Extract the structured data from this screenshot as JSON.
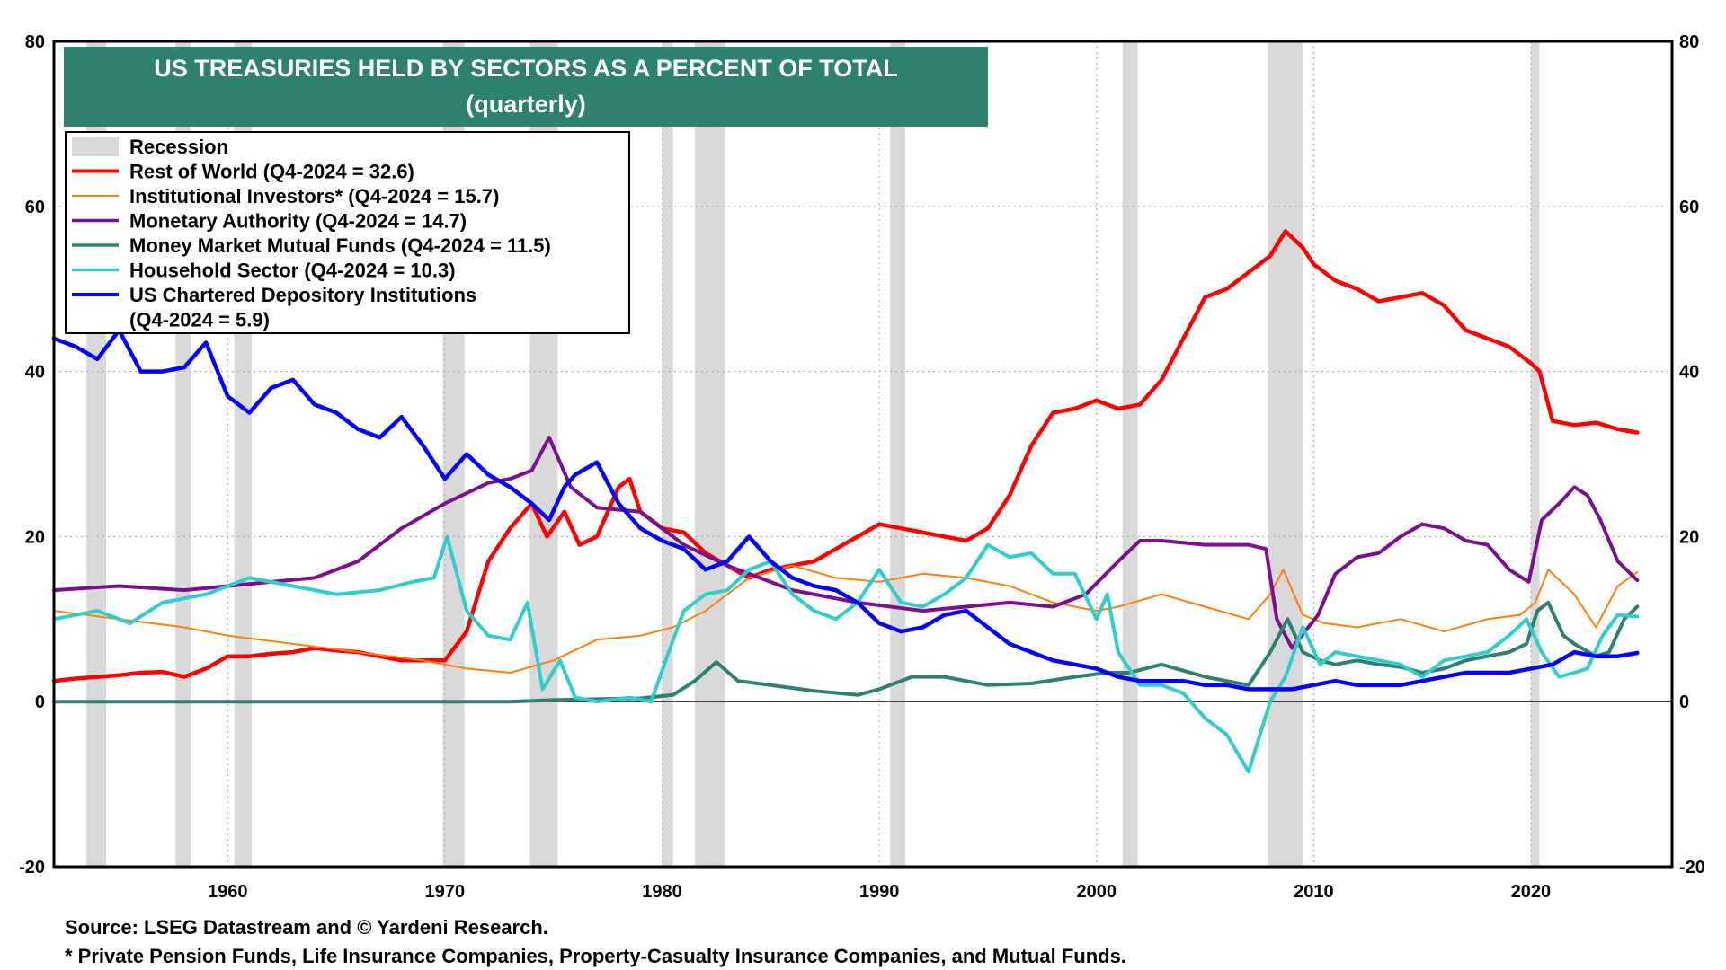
{
  "chart_data": {
    "type": "line",
    "title": "US TREASURIES HELD BY SECTORS AS A PERCENT OF TOTAL",
    "subtitle": "(quarterly)",
    "xlim": [
      1952,
      2026.5
    ],
    "ylim": [
      -20,
      80
    ],
    "x_ticks": [
      1960,
      1970,
      1980,
      1990,
      2000,
      2010,
      2020
    ],
    "y_ticks": [
      -20,
      0,
      20,
      40,
      60,
      80
    ],
    "grid": true,
    "legend_position": "top-left",
    "recession_label": "Recession",
    "recession_color": "#d9d9d9",
    "recessions": [
      [
        1953.5,
        1954.4
      ],
      [
        1957.6,
        1958.3
      ],
      [
        1960.3,
        1961.1
      ],
      [
        1969.9,
        1970.9
      ],
      [
        1973.9,
        1975.2
      ],
      [
        1980.0,
        1980.5
      ],
      [
        1981.5,
        1982.9
      ],
      [
        1990.5,
        1991.2
      ],
      [
        2001.2,
        2001.9
      ],
      [
        2007.9,
        2009.5
      ],
      [
        2020.0,
        2020.4
      ]
    ],
    "series": [
      {
        "name": "Rest of World (Q4-2024 = 32.6)",
        "color": "#ff0000",
        "width": 4.5,
        "x": [
          1952,
          1953,
          1954,
          1955,
          1956,
          1957,
          1958,
          1959,
          1960,
          1961,
          1962,
          1963,
          1964,
          1965,
          1966,
          1967,
          1968,
          1969,
          1970,
          1971,
          1972,
          1973,
          1974,
          1974.7,
          1975.5,
          1976.2,
          1977,
          1978,
          1978.5,
          1979,
          1980,
          1981,
          1982,
          1983,
          1984,
          1985,
          1986,
          1987,
          1988,
          1989,
          1990,
          1991,
          1992,
          1993,
          1994,
          1995,
          1996,
          1997,
          1998,
          1999,
          2000,
          2001,
          2002,
          2003,
          2004,
          2005,
          2006,
          2007,
          2008,
          2008.7,
          2009.5,
          2010,
          2011,
          2012,
          2013,
          2014,
          2015,
          2016,
          2017,
          2018,
          2019,
          2020,
          2020.4,
          2021,
          2022,
          2023,
          2024,
          2024.9
        ],
        "y": [
          2.5,
          2.8,
          3.0,
          3.2,
          3.5,
          3.6,
          3.0,
          4.0,
          5.5,
          5.5,
          5.8,
          6.0,
          6.5,
          6.2,
          6.0,
          5.5,
          5.0,
          5.0,
          5.0,
          8.5,
          17.0,
          21.0,
          24.0,
          20.0,
          23.0,
          19.0,
          20.0,
          26.0,
          27.0,
          23.0,
          21.0,
          20.5,
          18.0,
          16.5,
          15.0,
          16.0,
          16.5,
          17.0,
          18.5,
          20.0,
          21.5,
          21.0,
          20.5,
          20.0,
          19.5,
          21.0,
          25.0,
          31.0,
          35.0,
          35.5,
          36.5,
          35.5,
          36.0,
          39.0,
          44.0,
          49.0,
          50.0,
          52.0,
          54.0,
          57.0,
          55.0,
          53.0,
          51.0,
          50.0,
          48.5,
          49.0,
          49.5,
          48.0,
          45.0,
          44.0,
          43.0,
          41.0,
          40.0,
          34.0,
          33.5,
          33.8,
          33.0,
          32.6
        ]
      },
      {
        "name": "Institutional Investors* (Q4-2024 = 15.7)",
        "color": "#ff7f0e",
        "width": 2,
        "x": [
          1952,
          1955,
          1958,
          1960,
          1963,
          1966,
          1969,
          1971,
          1973,
          1975,
          1977,
          1979,
          1980.5,
          1982,
          1984,
          1986,
          1988,
          1990,
          1992,
          1994,
          1996,
          1998,
          2000,
          2001,
          2003,
          2005,
          2007,
          2008,
          2008.6,
          2009.5,
          2010.5,
          2012,
          2014,
          2016,
          2018,
          2019.5,
          2020.2,
          2020.8,
          2022,
          2023,
          2024,
          2024.9
        ],
        "y": [
          11.0,
          10.0,
          9.0,
          8.0,
          7.0,
          6.0,
          5.0,
          4.0,
          3.5,
          5.0,
          7.5,
          8.0,
          9.0,
          11.0,
          15.0,
          16.5,
          15.0,
          14.5,
          15.5,
          15.0,
          14.0,
          12.0,
          11.0,
          11.5,
          13.0,
          11.5,
          10.0,
          13.0,
          16.0,
          10.5,
          9.5,
          9.0,
          10.0,
          8.5,
          10.0,
          10.5,
          12.0,
          16.0,
          13.0,
          9.0,
          14.0,
          15.7
        ]
      },
      {
        "name": "Monetary Authority (Q4-2024 = 14.7)",
        "color": "#7b0f8f",
        "width": 4,
        "x": [
          1952,
          1955,
          1958,
          1960,
          1962,
          1964,
          1966,
          1968,
          1970,
          1972,
          1973,
          1974,
          1974.8,
          1975.8,
          1977,
          1979,
          1981,
          1983,
          1986,
          1989,
          1992,
          1994,
          1996,
          1998,
          1999.5,
          2001,
          2002,
          2003,
          2005,
          2007,
          2007.8,
          2008.3,
          2009,
          2010.2,
          2011,
          2012,
          2013,
          2014,
          2015,
          2016,
          2017,
          2018,
          2019,
          2019.9,
          2020.5,
          2021.3,
          2022,
          2022.6,
          2023.2,
          2024,
          2024.9
        ],
        "y": [
          13.5,
          14.0,
          13.5,
          14.0,
          14.5,
          15.0,
          17.0,
          21.0,
          24.0,
          26.5,
          27.0,
          28.0,
          32.0,
          26.0,
          23.5,
          23.0,
          19.0,
          16.5,
          13.5,
          12.0,
          11.0,
          11.5,
          12.0,
          11.5,
          13.0,
          17.0,
          19.5,
          19.5,
          19.0,
          19.0,
          18.5,
          10.0,
          6.5,
          10.5,
          15.5,
          17.5,
          18.0,
          20.0,
          21.5,
          21.0,
          19.5,
          19.0,
          16.0,
          14.5,
          22.0,
          24.0,
          26.0,
          25.0,
          22.0,
          17.0,
          14.7
        ]
      },
      {
        "name": "Money Market Mutual Funds (Q4-2024 = 11.5)",
        "color": "#2e8071",
        "width": 4,
        "x": [
          1952,
          1973,
          1975,
          1977,
          1979,
          1980.5,
          1981.5,
          1982.5,
          1983.5,
          1985,
          1987,
          1989,
          1990,
          1991.5,
          1993,
          1995,
          1997,
          1999,
          2000.5,
          2001.5,
          2003,
          2005,
          2007,
          2008,
          2008.8,
          2009.5,
          2010.3,
          2011,
          2012,
          2013,
          2014,
          2015,
          2016,
          2017,
          2018,
          2019,
          2019.8,
          2020.3,
          2020.8,
          2021.5,
          2022,
          2023,
          2023.6,
          2024.3,
          2024.9
        ],
        "y": [
          0.0,
          0.0,
          0.2,
          0.3,
          0.4,
          0.8,
          2.5,
          4.8,
          2.5,
          2.0,
          1.3,
          0.8,
          1.5,
          3.0,
          3.0,
          2.0,
          2.2,
          3.0,
          3.5,
          3.5,
          4.5,
          3.0,
          2.0,
          6.0,
          10.0,
          6.0,
          5.0,
          4.5,
          5.0,
          4.5,
          4.2,
          3.5,
          4.0,
          5.0,
          5.5,
          6.0,
          7.0,
          11.0,
          12.0,
          8.0,
          7.0,
          5.5,
          6.0,
          10.0,
          11.5
        ]
      },
      {
        "name": "Household Sector  (Q4-2024 = 10.3)",
        "color": "#33cccc",
        "width": 4,
        "x": [
          1952,
          1954,
          1955.5,
          1957,
          1959,
          1961,
          1963,
          1965,
          1967,
          1968.5,
          1969.5,
          1970.1,
          1971,
          1972,
          1973,
          1973.8,
          1974.5,
          1975.3,
          1976,
          1977,
          1978.5,
          1979.5,
          1980.3,
          1981,
          1982,
          1983,
          1984,
          1985,
          1986,
          1987,
          1988,
          1989,
          1990,
          1991,
          1992,
          1993,
          1994,
          1995,
          1996,
          1997,
          1998,
          1999,
          2000,
          2000.5,
          2001,
          2002,
          2003,
          2004,
          2005,
          2006,
          2007,
          2008,
          2008.7,
          2009.5,
          2010.3,
          2011,
          2012,
          2013,
          2014,
          2015,
          2016,
          2017,
          2018,
          2019,
          2019.8,
          2020.5,
          2021.3,
          2022,
          2022.6,
          2023.3,
          2024,
          2024.9
        ],
        "y": [
          10.0,
          11.0,
          9.5,
          12.0,
          13.0,
          15.0,
          14.0,
          13.0,
          13.5,
          14.5,
          15.0,
          20.0,
          11.0,
          8.0,
          7.5,
          12.0,
          1.5,
          5.0,
          0.5,
          0.0,
          0.5,
          0.0,
          6.0,
          11.0,
          13.0,
          13.5,
          16.0,
          17.0,
          13.0,
          11.0,
          10.0,
          12.0,
          16.0,
          12.0,
          11.5,
          13.0,
          15.0,
          19.0,
          17.5,
          18.0,
          15.5,
          15.5,
          10.0,
          13.0,
          6.0,
          2.0,
          2.0,
          1.0,
          -2.0,
          -4.0,
          -8.5,
          0.0,
          3.0,
          9.0,
          4.5,
          6.0,
          5.5,
          5.0,
          4.5,
          3.0,
          5.0,
          5.5,
          6.0,
          8.0,
          10.0,
          6.0,
          3.0,
          3.5,
          4.0,
          8.0,
          10.5,
          10.3
        ]
      },
      {
        "name": "US Chartered Depository Institutions",
        "name2": "(Q4-2024 = 5.9)",
        "color": "#0000ff",
        "width": 4.5,
        "x": [
          1952,
          1953,
          1954,
          1955,
          1956,
          1957,
          1958,
          1959,
          1960,
          1961,
          1962,
          1963,
          1964,
          1965,
          1966,
          1967,
          1968,
          1969,
          1970,
          1971,
          1972,
          1973,
          1974,
          1974.8,
          1975.5,
          1976,
          1977,
          1978,
          1979,
          1980,
          1981,
          1982,
          1983,
          1984,
          1985,
          1986,
          1987,
          1988,
          1989,
          1990,
          1991,
          1992,
          1993,
          1994,
          1995,
          1996,
          1997,
          1998,
          1999,
          2000,
          2001,
          2002,
          2003,
          2004,
          2005,
          2006,
          2007,
          2008,
          2009,
          2010,
          2011,
          2012,
          2013,
          2014,
          2015,
          2016,
          2017,
          2018,
          2019,
          2020,
          2021,
          2022,
          2023,
          2024,
          2024.9
        ],
        "y": [
          44.0,
          43.0,
          41.5,
          45.0,
          40.0,
          40.0,
          40.5,
          43.5,
          37.0,
          35.0,
          38.0,
          39.0,
          36.0,
          35.0,
          33.0,
          32.0,
          34.5,
          31.0,
          27.0,
          30.0,
          27.5,
          26.0,
          24.0,
          22.0,
          26.0,
          27.5,
          29.0,
          24.0,
          21.0,
          19.5,
          18.5,
          16.0,
          17.0,
          20.0,
          17.0,
          15.0,
          14.0,
          13.5,
          12.0,
          9.5,
          8.5,
          9.0,
          10.5,
          11.0,
          9.0,
          7.0,
          6.0,
          5.0,
          4.5,
          4.0,
          3.0,
          2.5,
          2.5,
          2.5,
          2.0,
          2.0,
          1.5,
          1.5,
          1.5,
          2.0,
          2.5,
          2.0,
          2.0,
          2.0,
          2.5,
          3.0,
          3.5,
          3.5,
          3.5,
          4.0,
          4.5,
          6.0,
          5.5,
          5.5,
          5.9
        ]
      }
    ]
  },
  "footer": {
    "source": "Source: LSEG Datastream and © Yardeni Research.",
    "note": "* Private Pension Funds, Life Insurance Companies, Property-Casualty Insurance Companies, and Mutual Funds."
  }
}
